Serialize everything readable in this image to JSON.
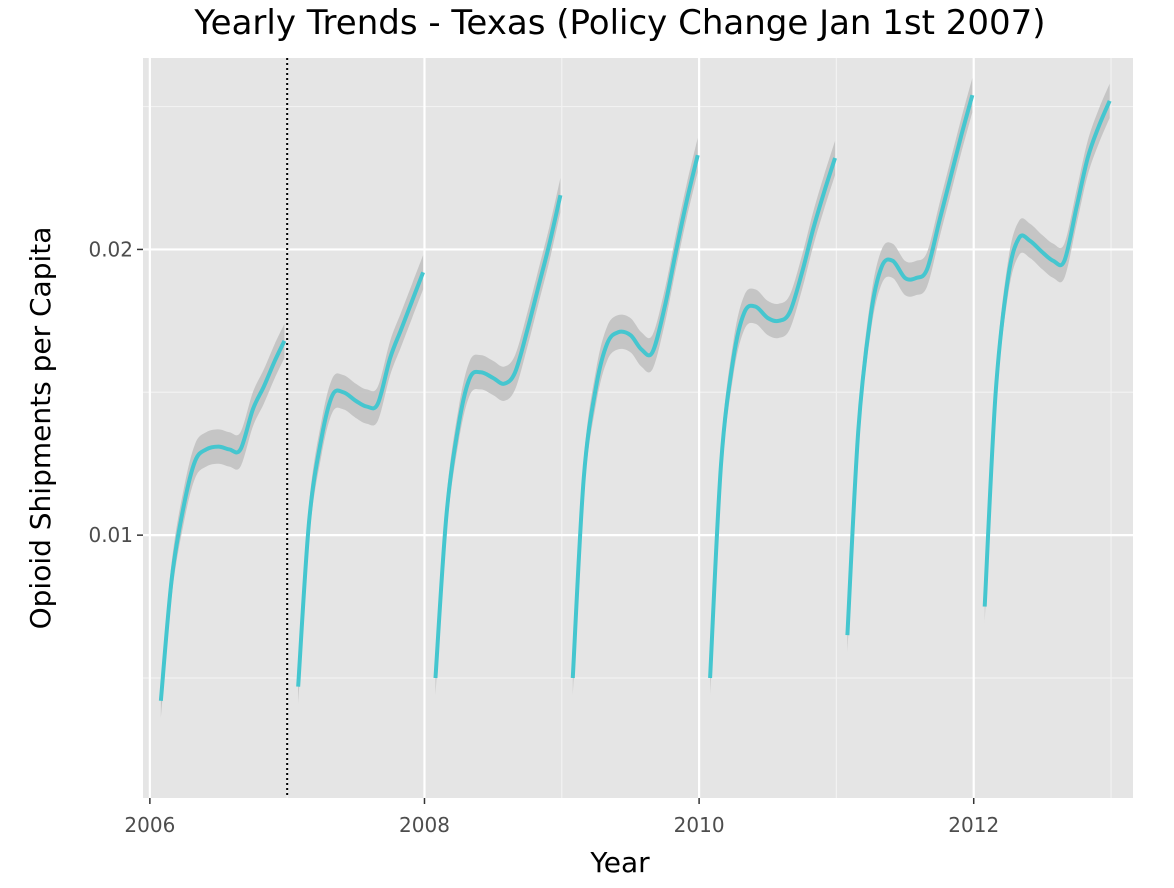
{
  "chart_data": {
    "type": "line",
    "title": "Yearly Trends - Texas (Policy Change Jan 1st 2007)",
    "xlabel": "Year",
    "ylabel": "Opioid Shipments per Capita",
    "xlim": [
      2005.95,
      2013.16
    ],
    "ylim": [
      0.0008,
      0.0267
    ],
    "x_ticks": [
      {
        "value": 2006,
        "label": "2006"
      },
      {
        "value": 2008,
        "label": "2008"
      },
      {
        "value": 2010,
        "label": "2010"
      },
      {
        "value": 2012,
        "label": "2012"
      }
    ],
    "y_ticks": [
      {
        "value": 0.01,
        "label": "0.01"
      },
      {
        "value": 0.02,
        "label": "0.02"
      }
    ],
    "grid": true,
    "legend": "none",
    "line_color": "#45c6cf",
    "band_color": "#bfbfbf",
    "panel_color": "#e5e5e5",
    "policy_change_year": 2007,
    "series": [
      {
        "x": [
          2006.08,
          2006.16,
          2006.25,
          2006.33,
          2006.41,
          2006.5,
          2006.58,
          2006.66,
          2006.75,
          2006.83,
          2006.91,
          2006.98
        ],
        "y": [
          0.0042,
          0.0085,
          0.0111,
          0.0126,
          0.013,
          0.0131,
          0.013,
          0.013,
          0.0144,
          0.0152,
          0.0161,
          0.0168
        ]
      },
      {
        "x": [
          2007.08,
          2007.16,
          2007.25,
          2007.33,
          2007.41,
          2007.5,
          2007.58,
          2007.66,
          2007.75,
          2007.83,
          2007.91,
          2007.99
        ],
        "y": [
          0.0047,
          0.0105,
          0.0134,
          0.0149,
          0.015,
          0.0147,
          0.0145,
          0.0146,
          0.0162,
          0.0172,
          0.0182,
          0.0192
        ]
      },
      {
        "x": [
          2008.08,
          2008.16,
          2008.25,
          2008.33,
          2008.41,
          2008.5,
          2008.58,
          2008.66,
          2008.75,
          2008.83,
          2008.91,
          2008.99
        ],
        "y": [
          0.005,
          0.0107,
          0.0139,
          0.0155,
          0.0157,
          0.0155,
          0.0153,
          0.0157,
          0.0172,
          0.0187,
          0.0202,
          0.0219
        ]
      },
      {
        "x": [
          2009.08,
          2009.16,
          2009.25,
          2009.33,
          2009.41,
          2009.5,
          2009.58,
          2009.66,
          2009.75,
          2009.83,
          2009.91,
          2009.99
        ],
        "y": [
          0.005,
          0.012,
          0.0152,
          0.0167,
          0.0171,
          0.017,
          0.0165,
          0.0164,
          0.018,
          0.0199,
          0.0217,
          0.0233
        ]
      },
      {
        "x": [
          2010.08,
          2010.16,
          2010.25,
          2010.33,
          2010.41,
          2010.5,
          2010.58,
          2010.66,
          2010.75,
          2010.83,
          2010.91,
          2010.99
        ],
        "y": [
          0.005,
          0.0125,
          0.0162,
          0.0178,
          0.018,
          0.0176,
          0.0175,
          0.0178,
          0.0192,
          0.0207,
          0.022,
          0.0232
        ]
      },
      {
        "x": [
          2011.08,
          2011.16,
          2011.25,
          2011.33,
          2011.41,
          2011.5,
          2011.58,
          2011.66,
          2011.75,
          2011.83,
          2011.91,
          2011.99
        ],
        "y": [
          0.0065,
          0.0137,
          0.0177,
          0.0194,
          0.0196,
          0.019,
          0.019,
          0.0193,
          0.021,
          0.0225,
          0.024,
          0.0254
        ]
      },
      {
        "x": [
          2012.08,
          2012.16,
          2012.25,
          2012.33,
          2012.41,
          2012.5,
          2012.58,
          2012.66,
          2012.75,
          2012.83,
          2012.91,
          2012.99
        ],
        "y": [
          0.0075,
          0.015,
          0.019,
          0.0204,
          0.0203,
          0.0199,
          0.0196,
          0.0196,
          0.0215,
          0.0232,
          0.0243,
          0.0252
        ]
      }
    ]
  }
}
